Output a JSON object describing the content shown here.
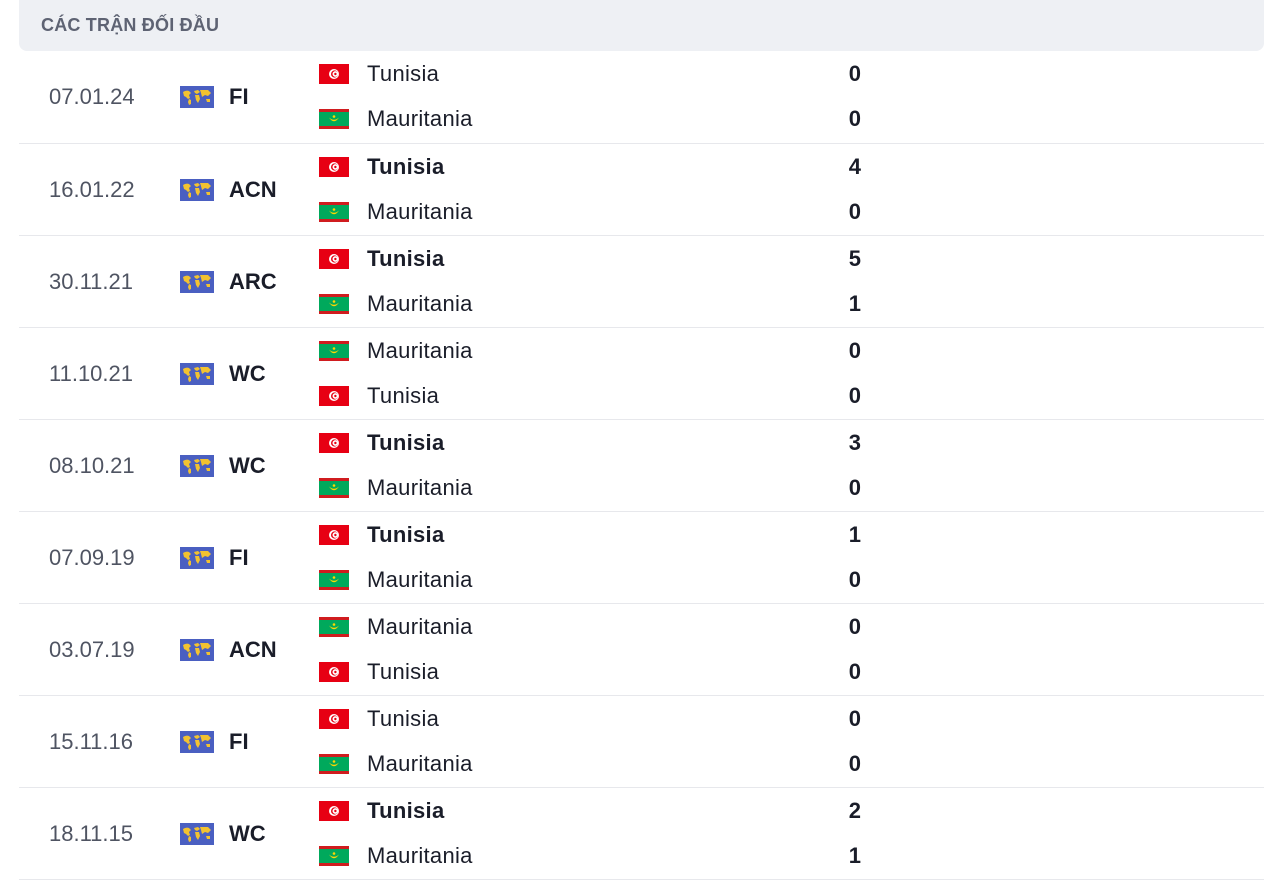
{
  "header": {
    "title": "CÁC TRẬN ĐỐI ĐẦU"
  },
  "competition_icon": "world-map-icon",
  "team_flags": {
    "Tunisia": "tunisia-flag-icon",
    "Mauritania": "mauritania-flag-icon"
  },
  "matches": [
    {
      "date": "07.01.24",
      "competition": "FI",
      "home": {
        "name": "Tunisia",
        "score": "0",
        "winner": false
      },
      "away": {
        "name": "Mauritania",
        "score": "0",
        "winner": false
      }
    },
    {
      "date": "16.01.22",
      "competition": "ACN",
      "home": {
        "name": "Tunisia",
        "score": "4",
        "winner": true
      },
      "away": {
        "name": "Mauritania",
        "score": "0",
        "winner": false
      }
    },
    {
      "date": "30.11.21",
      "competition": "ARC",
      "home": {
        "name": "Tunisia",
        "score": "5",
        "winner": true
      },
      "away": {
        "name": "Mauritania",
        "score": "1",
        "winner": false
      }
    },
    {
      "date": "11.10.21",
      "competition": "WC",
      "home": {
        "name": "Mauritania",
        "score": "0",
        "winner": false
      },
      "away": {
        "name": "Tunisia",
        "score": "0",
        "winner": false
      }
    },
    {
      "date": "08.10.21",
      "competition": "WC",
      "home": {
        "name": "Tunisia",
        "score": "3",
        "winner": true
      },
      "away": {
        "name": "Mauritania",
        "score": "0",
        "winner": false
      }
    },
    {
      "date": "07.09.19",
      "competition": "FI",
      "home": {
        "name": "Tunisia",
        "score": "1",
        "winner": true
      },
      "away": {
        "name": "Mauritania",
        "score": "0",
        "winner": false
      }
    },
    {
      "date": "03.07.19",
      "competition": "ACN",
      "home": {
        "name": "Mauritania",
        "score": "0",
        "winner": false
      },
      "away": {
        "name": "Tunisia",
        "score": "0",
        "winner": false
      }
    },
    {
      "date": "15.11.16",
      "competition": "FI",
      "home": {
        "name": "Tunisia",
        "score": "0",
        "winner": false
      },
      "away": {
        "name": "Mauritania",
        "score": "0",
        "winner": false
      }
    },
    {
      "date": "18.11.15",
      "competition": "WC",
      "home": {
        "name": "Tunisia",
        "score": "2",
        "winner": true
      },
      "away": {
        "name": "Mauritania",
        "score": "1",
        "winner": false
      }
    }
  ],
  "colors": {
    "header_bg": "#eef0f4",
    "row_divider": "#e7e8ec",
    "comp_icon_bg": "#4a5fc1",
    "comp_icon_land": "#f2c230",
    "tunisia_red": "#e70013",
    "mauritania_green": "#00a95c",
    "mauritania_red": "#d01c1f",
    "mauritania_gold": "#ffd700"
  }
}
